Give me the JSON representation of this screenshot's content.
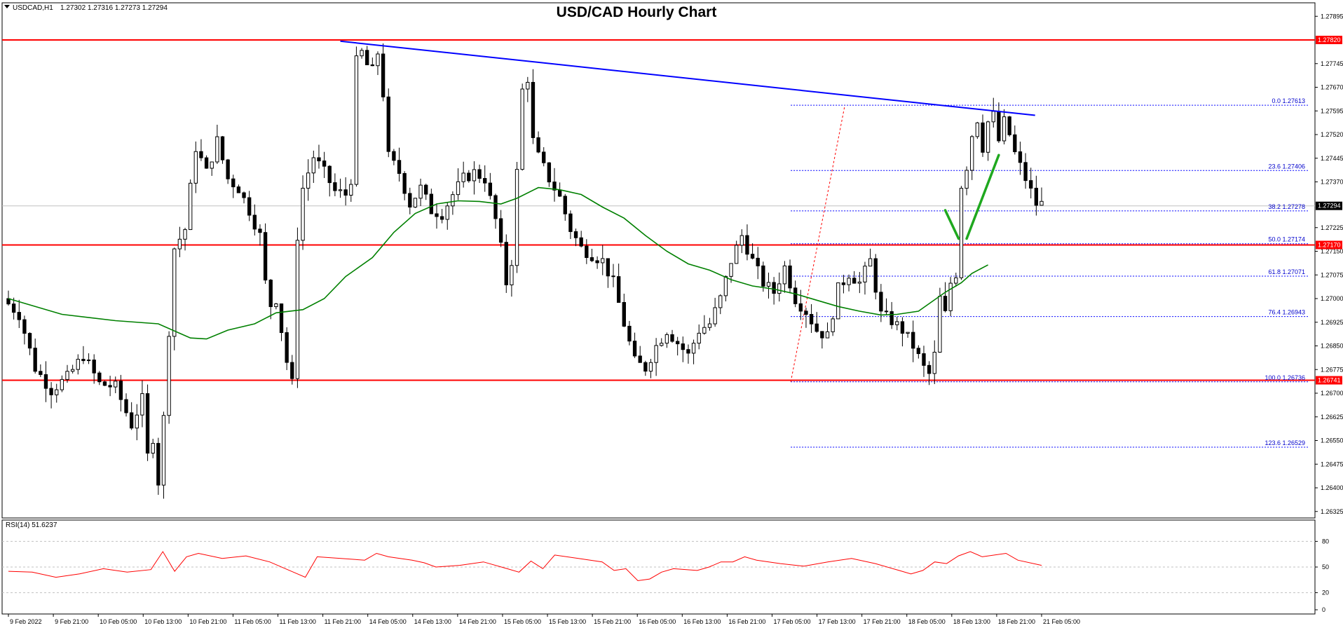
{
  "chart_data": {
    "type": "candlestick",
    "title": "USD/CAD Hourly Chart",
    "header": {
      "symbol": "USDCAD,H1",
      "ohlc": "1.27302 1.27316 1.27273 1.27294"
    },
    "price_axis": {
      "ylim": [
        1.2632,
        1.2792
      ],
      "ticks": [
        "1.27895",
        "1.27745",
        "1.27670",
        "1.27595",
        "1.27520",
        "1.27445",
        "1.27370",
        "1.27225",
        "1.27150",
        "1.27075",
        "1.27000",
        "1.26925",
        "1.26850",
        "1.26775",
        "1.26700",
        "1.26625",
        "1.26550",
        "1.26475",
        "1.26400",
        "1.26325"
      ],
      "tick_values": [
        1.27895,
        1.27745,
        1.2767,
        1.27595,
        1.2752,
        1.27445,
        1.2737,
        1.27225,
        1.2715,
        1.27075,
        1.27,
        1.26925,
        1.2685,
        1.26775,
        1.267,
        1.26625,
        1.2655,
        1.26475,
        1.264,
        1.26325
      ]
    },
    "time_axis": {
      "bars": 216,
      "labels": [
        {
          "text": "9 Feb 2022",
          "bar": 0
        },
        {
          "text": "9 Feb 21:00",
          "bar": 8
        },
        {
          "text": "10 Feb 05:00",
          "bar": 16
        },
        {
          "text": "10 Feb 13:00",
          "bar": 24
        },
        {
          "text": "10 Feb 21:00",
          "bar": 32
        },
        {
          "text": "11 Feb 05:00",
          "bar": 40
        },
        {
          "text": "11 Feb 13:00",
          "bar": 48
        },
        {
          "text": "11 Feb 21:00",
          "bar": 56
        },
        {
          "text": "14 Feb 05:00",
          "bar": 64
        },
        {
          "text": "14 Feb 13:00",
          "bar": 72
        },
        {
          "text": "14 Feb 21:00",
          "bar": 80
        },
        {
          "text": "15 Feb 05:00",
          "bar": 88
        },
        {
          "text": "15 Feb 13:00",
          "bar": 96
        },
        {
          "text": "15 Feb 21:00",
          "bar": 104
        },
        {
          "text": "16 Feb 05:00",
          "bar": 112
        },
        {
          "text": "16 Feb 13:00",
          "bar": 120
        },
        {
          "text": "16 Feb 21:00",
          "bar": 128
        },
        {
          "text": "17 Feb 05:00",
          "bar": 136
        },
        {
          "text": "17 Feb 13:00",
          "bar": 144
        },
        {
          "text": "17 Feb 21:00",
          "bar": 152
        },
        {
          "text": "18 Feb 05:00",
          "bar": 160
        },
        {
          "text": "18 Feb 13:00",
          "bar": 168
        },
        {
          "text": "18 Feb 21:00",
          "bar": 176
        },
        {
          "text": "21 Feb 05:00",
          "bar": 184
        }
      ]
    },
    "price_path": [
      [
        0,
        1.27
      ],
      [
        3,
        1.2695
      ],
      [
        6,
        1.2678
      ],
      [
        9,
        1.2671
      ],
      [
        12,
        1.2675
      ],
      [
        15,
        1.2682
      ],
      [
        18,
        1.2673
      ],
      [
        21,
        1.2672
      ],
      [
        24,
        1.266
      ],
      [
        26,
        1.2668
      ],
      [
        27,
        1.265
      ],
      [
        28,
        1.2656
      ],
      [
        29,
        1.2642
      ],
      [
        30,
        1.2662
      ],
      [
        31,
        1.269
      ],
      [
        32,
        1.2716
      ],
      [
        34,
        1.2722
      ],
      [
        36,
        1.2748
      ],
      [
        38,
        1.274
      ],
      [
        40,
        1.275
      ],
      [
        42,
        1.2738
      ],
      [
        44,
        1.2735
      ],
      [
        46,
        1.2728
      ],
      [
        48,
        1.272
      ],
      [
        49,
        1.2705
      ],
      [
        50,
        1.2698
      ],
      [
        51,
        1.27
      ],
      [
        52,
        1.269
      ],
      [
        53,
        1.268
      ],
      [
        54,
        1.2673
      ],
      [
        55,
        1.272
      ],
      [
        56,
        1.2735
      ],
      [
        58,
        1.2745
      ],
      [
        60,
        1.274
      ],
      [
        62,
        1.2734
      ],
      [
        64,
        1.2733
      ],
      [
        65,
        1.2738
      ],
      [
        66,
        1.2775
      ],
      [
        67,
        1.2778
      ],
      [
        68,
        1.2774
      ],
      [
        69,
        1.2772
      ],
      [
        70,
        1.2778
      ],
      [
        71,
        1.2765
      ],
      [
        72,
        1.2745
      ],
      [
        74,
        1.274
      ],
      [
        76,
        1.273
      ],
      [
        78,
        1.2735
      ],
      [
        80,
        1.2728
      ],
      [
        82,
        1.2727
      ],
      [
        84,
        1.2733
      ],
      [
        86,
        1.2738
      ],
      [
        88,
        1.274
      ],
      [
        90,
        1.2738
      ],
      [
        92,
        1.2725
      ],
      [
        93,
        1.2716
      ],
      [
        94,
        1.2705
      ],
      [
        95,
        1.2712
      ],
      [
        96,
        1.274
      ],
      [
        97,
        1.2766
      ],
      [
        98,
        1.277
      ],
      [
        99,
        1.275
      ],
      [
        100,
        1.2745
      ],
      [
        102,
        1.2738
      ],
      [
        104,
        1.2732
      ],
      [
        106,
        1.2722
      ],
      [
        108,
        1.2716
      ],
      [
        110,
        1.2714
      ],
      [
        112,
        1.2712
      ],
      [
        114,
        1.2705
      ],
      [
        116,
        1.2692
      ],
      [
        118,
        1.268
      ],
      [
        120,
        1.2678
      ],
      [
        122,
        1.2685
      ],
      [
        124,
        1.269
      ],
      [
        126,
        1.2686
      ],
      [
        128,
        1.2682
      ],
      [
        130,
        1.269
      ],
      [
        132,
        1.2692
      ],
      [
        134,
        1.27
      ],
      [
        136,
        1.2712
      ],
      [
        138,
        1.272
      ],
      [
        140,
        1.2712
      ],
      [
        142,
        1.2705
      ],
      [
        144,
        1.2702
      ],
      [
        146,
        1.271
      ],
      [
        148,
        1.27
      ],
      [
        150,
        1.2696
      ],
      [
        152,
        1.269
      ],
      [
        154,
        1.2688
      ],
      [
        156,
        1.2703
      ],
      [
        158,
        1.2708
      ],
      [
        160,
        1.2705
      ],
      [
        162,
        1.2712
      ],
      [
        164,
        1.2695
      ],
      [
        166,
        1.2693
      ],
      [
        168,
        1.269
      ],
      [
        170,
        1.2685
      ],
      [
        172,
        1.2678
      ],
      [
        173,
        1.2676
      ],
      [
        174,
        1.2682
      ],
      [
        175,
        1.27
      ],
      [
        176,
        1.2695
      ],
      [
        177,
        1.2705
      ],
      [
        178,
        1.2708
      ],
      [
        179,
        1.2736
      ],
      [
        180,
        1.2742
      ],
      [
        181,
        1.2752
      ],
      [
        182,
        1.2757
      ],
      [
        183,
        1.2748
      ],
      [
        184,
        1.2756
      ],
      [
        185,
        1.2758
      ],
      [
        186,
        1.275
      ],
      [
        187,
        1.2756
      ],
      [
        188,
        1.2752
      ],
      [
        189,
        1.2746
      ],
      [
        190,
        1.2742
      ],
      [
        191,
        1.2738
      ],
      [
        192,
        1.2734
      ],
      [
        193,
        1.273
      ]
    ],
    "candle_noise_seed": 7,
    "moving_average": {
      "color": "#008000",
      "points": [
        [
          0,
          1.27
        ],
        [
          10,
          1.2695
        ],
        [
          20,
          1.2693
        ],
        [
          28,
          1.2692
        ],
        [
          32,
          1.2689
        ],
        [
          34,
          1.26875
        ],
        [
          37,
          1.26872
        ],
        [
          41,
          1.269
        ],
        [
          46,
          1.2692
        ],
        [
          50,
          1.26955
        ],
        [
          55,
          1.26965
        ],
        [
          59,
          1.27
        ],
        [
          63,
          1.2707
        ],
        [
          68,
          1.2713
        ],
        [
          72,
          1.2721
        ],
        [
          76,
          1.2727
        ],
        [
          80,
          1.273
        ],
        [
          84,
          1.2731
        ],
        [
          88,
          1.27308
        ],
        [
          92,
          1.273
        ],
        [
          95,
          1.27318
        ],
        [
          99,
          1.27352
        ],
        [
          103,
          1.27345
        ],
        [
          107,
          1.2733
        ],
        [
          111,
          1.2729
        ],
        [
          115,
          1.27255
        ],
        [
          119,
          1.272
        ],
        [
          123,
          1.2715
        ],
        [
          127,
          1.2711
        ],
        [
          131,
          1.2709
        ],
        [
          135,
          1.2706
        ],
        [
          139,
          1.2704
        ],
        [
          143,
          1.2703
        ],
        [
          147,
          1.27015
        ],
        [
          151,
          1.26995
        ],
        [
          155,
          1.26975
        ],
        [
          159,
          1.2696
        ],
        [
          163,
          1.26948
        ],
        [
          166,
          1.2695
        ],
        [
          170,
          1.2696
        ],
        [
          175,
          1.2702
        ],
        [
          178,
          1.2705
        ],
        [
          180,
          1.2708
        ],
        [
          183,
          1.27107
        ]
      ]
    },
    "trendline": {
      "color": "#0000ff",
      "start": [
        62,
        1.27816
      ],
      "end": [
        180,
        1.27581
      ]
    },
    "horizontal_lines": {
      "color": "#ff0000",
      "levels": [
        1.2782,
        1.2717,
        1.26741
      ]
    },
    "price_labels": [
      {
        "text": "1.27820",
        "value": 1.2782,
        "bg": "#ff0000",
        "fg": "#ffffff"
      },
      {
        "text": "1.27294",
        "value": 1.27294,
        "bg": "#000000",
        "fg": "#ffffff"
      },
      {
        "text": "1.27170",
        "value": 1.2717,
        "bg": "#ff0000",
        "fg": "#ffffff"
      },
      {
        "text": "1.26741",
        "value": 1.26741,
        "bg": "#ff0000",
        "fg": "#ffffff"
      }
    ],
    "current_price_line": 1.27294,
    "fibonacci": {
      "color": "#0000ff",
      "start_bar": 154,
      "end_bar": 216,
      "swing_low": [
        154,
        1.26736
      ],
      "swing_high": [
        165,
        1.27613
      ],
      "levels": [
        {
          "text": "0.0 1.27613",
          "value": 1.27613
        },
        {
          "text": "23.6 1.27406",
          "value": 1.27406
        },
        {
          "text": "38.2 1.27278",
          "value": 1.27278
        },
        {
          "text": "50.0 1.27174",
          "value": 1.27174
        },
        {
          "text": "61.8 1.27071",
          "value": 1.27071
        },
        {
          "text": "76.4 1.26943",
          "value": 1.26943
        },
        {
          "text": "100.0 1.26736",
          "value": 1.26736
        },
        {
          "text": "123.6 1.26529",
          "value": 1.26529
        }
      ]
    },
    "forecast_arrows": {
      "color": "#1fa81f",
      "segments": [
        [
          [
            175,
            1.2728
          ],
          [
            177.5,
            1.2719
          ]
        ],
        [
          [
            179,
            1.2719
          ],
          [
            185,
            1.27455
          ]
        ]
      ]
    },
    "rsi": {
      "label": "RSI(14) 51.6237",
      "color": "#ff0000",
      "ylim": [
        0,
        100
      ],
      "ticks": [
        80,
        50,
        20,
        0
      ],
      "levels": [
        80,
        50,
        20
      ],
      "points": [
        [
          0,
          45
        ],
        [
          4,
          44
        ],
        [
          8,
          38
        ],
        [
          12,
          42
        ],
        [
          16,
          48
        ],
        [
          20,
          44
        ],
        [
          24,
          47
        ],
        [
          26,
          68
        ],
        [
          28,
          45
        ],
        [
          30,
          62
        ],
        [
          32,
          66
        ],
        [
          36,
          60
        ],
        [
          40,
          63
        ],
        [
          44,
          56
        ],
        [
          48,
          44
        ],
        [
          50,
          38
        ],
        [
          52,
          62
        ],
        [
          56,
          60
        ],
        [
          60,
          58
        ],
        [
          62,
          66
        ],
        [
          64,
          62
        ],
        [
          68,
          58
        ],
        [
          70,
          55
        ],
        [
          72,
          50
        ],
        [
          76,
          52
        ],
        [
          80,
          56
        ],
        [
          84,
          48
        ],
        [
          86,
          44
        ],
        [
          88,
          57
        ],
        [
          90,
          48
        ],
        [
          92,
          64
        ],
        [
          96,
          60
        ],
        [
          100,
          56
        ],
        [
          102,
          46
        ],
        [
          104,
          48
        ],
        [
          106,
          34
        ],
        [
          108,
          36
        ],
        [
          110,
          44
        ],
        [
          112,
          48
        ],
        [
          116,
          46
        ],
        [
          118,
          50
        ],
        [
          120,
          56
        ],
        [
          122,
          56
        ],
        [
          124,
          62
        ],
        [
          126,
          58
        ],
        [
          130,
          54
        ],
        [
          134,
          51
        ],
        [
          138,
          56
        ],
        [
          142,
          60
        ],
        [
          146,
          54
        ],
        [
          150,
          46
        ],
        [
          152,
          42
        ],
        [
          154,
          46
        ],
        [
          156,
          56
        ],
        [
          158,
          54
        ],
        [
          160,
          63
        ],
        [
          162,
          68
        ],
        [
          164,
          62
        ],
        [
          168,
          66
        ],
        [
          170,
          58
        ],
        [
          174,
          52
        ]
      ]
    }
  }
}
